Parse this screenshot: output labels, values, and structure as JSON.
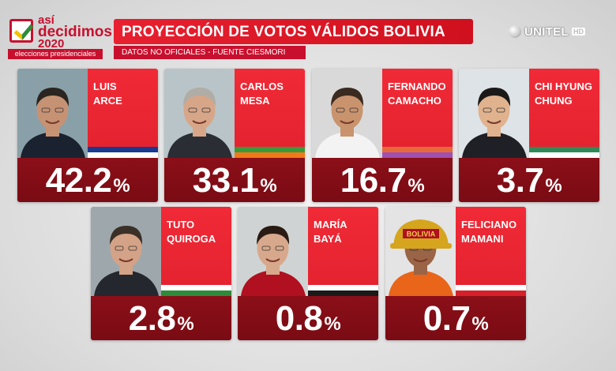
{
  "logo": {
    "line1": "así",
    "line2": "decidimos",
    "line3": "2020",
    "tag": "elecciones presidenciales"
  },
  "header": {
    "title": "PROYECCIÓN DE VOTOS VÁLIDOS BOLIVIA",
    "subtitle": "DATOS NO OFICIALES - FUENTE CIESMORI"
  },
  "channel": {
    "name": "UNITEL",
    "badge": "HD"
  },
  "percent_sign": "%",
  "candidates": [
    {
      "name_line1": "LUIS",
      "name_line2": "ARCE",
      "value": "42.2",
      "share": 42.2,
      "stripe": [
        "#1a3a8f",
        "#ffffff"
      ],
      "bg": "#8aa0a8",
      "suit": "#1a2230",
      "skin": "#c69274",
      "hair": "#2a2520"
    },
    {
      "name_line1": "CARLOS",
      "name_line2": "MESA",
      "value": "33.1",
      "share": 33.1,
      "stripe": [
        "#3a9a3a",
        "#f07a1a"
      ],
      "bg": "#b8c4c8",
      "suit": "#2a2d34",
      "skin": "#d7a688",
      "hair": "#b0aca6"
    },
    {
      "name_line1": "FERNANDO",
      "name_line2": "CAMACHO",
      "value": "16.7",
      "share": 16.7,
      "stripe": [
        "#e86a3a",
        "#a050b0"
      ],
      "bg": "#d9d9d9",
      "suit": "#f3f3f3",
      "skin": "#c9936e",
      "hair": "#3a2a20"
    },
    {
      "name_line1": "CHI HYUNG",
      "name_line2": "CHUNG",
      "value": "3.7",
      "share": 3.7,
      "stripe": [
        "#2e8b57",
        "#ffffff"
      ],
      "bg": "#dde3e6",
      "suit": "#1f2026",
      "skin": "#e0b28e",
      "hair": "#1c1a18"
    },
    {
      "name_line1": "TUTO",
      "name_line2": "QUIROGA",
      "value": "2.8",
      "share": 2.8,
      "stripe": [
        "#ffffff",
        "#2e8b3a"
      ],
      "bg": "#9ea8ac",
      "suit": "#25272e",
      "skin": "#d4a286",
      "hair": "#3b3028"
    },
    {
      "name_line1": "MARÍA",
      "name_line2": "BAYÁ",
      "value": "0.8",
      "share": 0.8,
      "stripe": [
        "#ffffff",
        "#1a1a1a"
      ],
      "bg": "#cfd3d3",
      "suit": "#b01020",
      "skin": "#d8a88c",
      "hair": "#2a1a14"
    },
    {
      "name_line1": "FELICIANO",
      "name_line2": "MAMANI",
      "value": "0.7",
      "share": 0.7,
      "stripe": [
        "#ffffff",
        "#d8202a"
      ],
      "bg": "#e4e4e4",
      "suit": "#e8651a",
      "skin": "#9a6446",
      "hair": "#1d1814",
      "helmet": "#d6a51e",
      "helmet_text": "BOLIVIA"
    }
  ]
}
